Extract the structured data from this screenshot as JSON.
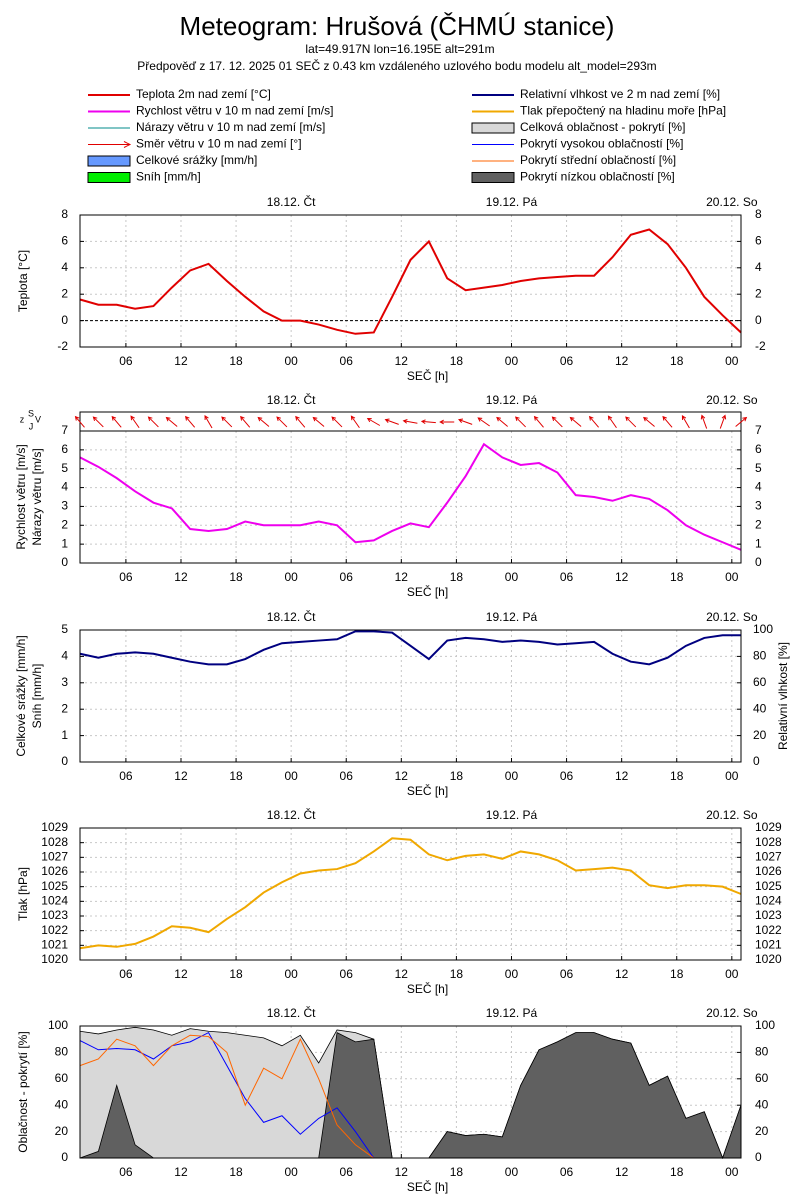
{
  "header": {
    "title": "Meteogram: Hrušová (ČHMÚ stanice)",
    "location": "lat=49.917N lon=16.195E alt=291m",
    "forecast": "Předpověď z 17. 12. 2025 01 SEČ z 0.43 km vzdáleného uzlového bodu modelu alt_model=293m"
  },
  "legend": {
    "left": [
      {
        "name": "Teplota 2m nad zemí [°C]",
        "color": "#e00000",
        "style": "line"
      },
      {
        "name": "Rychlost větru v 10 m nad zemí [m/s]",
        "color": "#ee00ee",
        "style": "line"
      },
      {
        "name": "Nárazy větru v 10 m nad zemí [m/s]",
        "color": "#008b8b",
        "style": "thin"
      },
      {
        "name": "Směr větru v 10 m nad zemí [°]",
        "color": "#e00000",
        "style": "arrow"
      },
      {
        "name": "Celkové srážky [mm/h]",
        "color": "#6699ff",
        "style": "box"
      },
      {
        "name": "Sníh [mm/h]",
        "color": "#00ee00",
        "style": "box"
      }
    ],
    "right": [
      {
        "name": "Relativní vlhkost ve 2 m nad zemí [%]",
        "color": "#000080",
        "style": "line"
      },
      {
        "name": "Tlak přepočtený na hladinu moře [hPa]",
        "color": "#f0a800",
        "style": "line"
      },
      {
        "name": "Celková oblačnost - pokrytí [%]",
        "color": "#d8d8d8",
        "style": "box"
      },
      {
        "name": "Pokrytí vysokou oblačností [%]",
        "color": "#0000ff",
        "style": "thin"
      },
      {
        "name": "Pokrytí střední oblačností [%]",
        "color": "#ff6600",
        "style": "thin"
      },
      {
        "name": "Pokrytí nízkou oblačností [%]",
        "color": "#606060",
        "style": "box"
      }
    ]
  },
  "time": {
    "xlabel": "SEČ [h]",
    "xlim": [
      1,
      73
    ],
    "x": [
      1,
      3,
      5,
      7,
      9,
      11,
      13,
      15,
      17,
      19,
      21,
      23,
      25,
      27,
      29,
      31,
      33,
      35,
      37,
      39,
      41,
      43,
      45,
      47,
      49,
      51,
      53,
      55,
      57,
      59,
      61,
      63,
      65,
      67,
      69,
      71,
      73
    ],
    "xticks": [
      {
        "value": 6,
        "label": "06"
      },
      {
        "value": 12,
        "label": "12"
      },
      {
        "value": 18,
        "label": "18"
      },
      {
        "value": 24,
        "label": "00"
      },
      {
        "value": 30,
        "label": "06"
      },
      {
        "value": 36,
        "label": "12"
      },
      {
        "value": 42,
        "label": "18"
      },
      {
        "value": 48,
        "label": "00"
      },
      {
        "value": 54,
        "label": "06"
      },
      {
        "value": 60,
        "label": "12"
      },
      {
        "value": 66,
        "label": "18"
      },
      {
        "value": 72,
        "label": "00"
      }
    ],
    "days": [
      {
        "value": 24,
        "label": "18.12. Čt"
      },
      {
        "value": 48,
        "label": "19.12. Pá"
      },
      {
        "value": 72,
        "label": "20.12. So"
      }
    ]
  },
  "chart_data": [
    {
      "type": "line",
      "ylabel": [
        "Teplota [°C]"
      ],
      "ylim": [
        -2,
        8
      ],
      "yticks": [
        -2,
        0,
        2,
        4,
        6,
        8
      ],
      "right_ticks": true,
      "zero_line": true,
      "grid": true,
      "series": [
        {
          "kind": "line",
          "color": "#e00000",
          "width": 2,
          "values": [
            1.6,
            1.2,
            1.2,
            0.9,
            1.1,
            2.5,
            3.8,
            4.3,
            3.0,
            1.8,
            0.7,
            0,
            0,
            -0.3,
            -0.7,
            -1.0,
            -0.9,
            1.8,
            4.6,
            6.0,
            3.2,
            2.3,
            2.5,
            2.7,
            3.0,
            3.2,
            3.3,
            3.4,
            3.4,
            4.8,
            6.5,
            6.9,
            5.8,
            4.0,
            1.8,
            0.4,
            -0.9
          ]
        }
      ]
    },
    {
      "type": "line",
      "ylabel": [
        "Rychlost větru [m/s]",
        "Nárazy větru [m/s]"
      ],
      "ylim": [
        0,
        7
      ],
      "yticks": [
        0,
        1,
        2,
        3,
        4,
        5,
        6,
        7
      ],
      "right_ticks": true,
      "grid": true,
      "direction_key": [
        "z",
        "S",
        "J",
        "V"
      ],
      "series": [
        {
          "kind": "line",
          "color": "#ee00ee",
          "width": 2,
          "values": [
            5.6,
            5.1,
            4.5,
            3.8,
            3.2,
            2.9,
            1.8,
            1.7,
            1.8,
            2.2,
            2.0,
            2.0,
            2.0,
            2.2,
            2.0,
            1.1,
            1.2,
            1.7,
            2.1,
            1.9,
            3.2,
            4.6,
            6.3,
            5.6,
            5.2,
            5.3,
            4.8,
            3.6,
            3.5,
            3.3,
            3.6,
            3.4,
            2.8,
            2.0,
            1.5,
            1.1,
            0.7
          ]
        },
        {
          "kind": "arrow",
          "color": "#e00000",
          "values": [
            140,
            135,
            140,
            145,
            135,
            130,
            140,
            150,
            135,
            140,
            130,
            135,
            140,
            130,
            135,
            145,
            120,
            110,
            100,
            95,
            90,
            110,
            125,
            130,
            135,
            140,
            135,
            130,
            140,
            145,
            135,
            130,
            140,
            150,
            160,
            200,
            230
          ]
        }
      ]
    },
    {
      "type": "line",
      "ylabel": [
        "Celkové srážky [mm/h]",
        "Sníh [mm/h]"
      ],
      "y2label": "Relativní vlhkost [%]",
      "ylim": [
        0,
        5
      ],
      "yticks": [
        0,
        1,
        2,
        3,
        4,
        5
      ],
      "y2lim": [
        0,
        100
      ],
      "y2ticks": [
        0,
        20,
        40,
        60,
        80,
        100
      ],
      "grid": true,
      "series": [
        {
          "kind": "bar",
          "color": "#6699ff",
          "values": [
            0,
            0,
            0,
            0,
            0,
            0,
            0,
            0,
            0,
            0,
            0,
            0,
            0,
            0,
            0,
            0,
            0,
            0,
            0,
            0,
            0,
            0,
            0,
            0,
            0,
            0,
            0,
            0,
            0,
            0,
            0,
            0,
            0,
            0,
            0,
            0,
            0
          ]
        },
        {
          "kind": "bar",
          "color": "#00ee00",
          "values": [
            0,
            0,
            0,
            0,
            0,
            0,
            0,
            0,
            0,
            0,
            0,
            0,
            0,
            0,
            0,
            0,
            0,
            0,
            0,
            0,
            0,
            0,
            0,
            0,
            0,
            0,
            0,
            0,
            0,
            0,
            0,
            0,
            0,
            0,
            0,
            0,
            0
          ]
        },
        {
          "kind": "line",
          "axis": "y2",
          "color": "#000080",
          "width": 2,
          "values": [
            82,
            79,
            82,
            83,
            82,
            79,
            76,
            74,
            74,
            78,
            85,
            90,
            91,
            92,
            93,
            99,
            99,
            98,
            88,
            78,
            92,
            94,
            93,
            91,
            92,
            91,
            89,
            90,
            91,
            82,
            76,
            74,
            79,
            88,
            94,
            96,
            96
          ]
        }
      ]
    },
    {
      "type": "line",
      "ylabel": [
        "Tlak [hPa]"
      ],
      "ylim": [
        1020,
        1029
      ],
      "yticks": [
        1020,
        1021,
        1022,
        1023,
        1024,
        1025,
        1026,
        1027,
        1028,
        1029
      ],
      "right_ticks": true,
      "grid": true,
      "series": [
        {
          "kind": "line",
          "color": "#f0a800",
          "width": 2,
          "values": [
            1020.8,
            1021.0,
            1020.9,
            1021.1,
            1021.6,
            1022.3,
            1022.2,
            1021.9,
            1022.8,
            1023.6,
            1024.6,
            1025.3,
            1025.9,
            1026.1,
            1026.2,
            1026.6,
            1027.4,
            1028.3,
            1028.2,
            1027.2,
            1026.8,
            1027.1,
            1027.2,
            1026.9,
            1027.4,
            1027.2,
            1026.8,
            1026.1,
            1026.2,
            1026.3,
            1026.1,
            1025.1,
            1024.9,
            1025.1,
            1025.1,
            1025.0,
            1024.5
          ]
        }
      ]
    },
    {
      "type": "line",
      "ylabel": [
        "Oblačnost - pokrytí [%]"
      ],
      "ylim": [
        0,
        100
      ],
      "yticks": [
        0,
        20,
        40,
        60,
        80,
        100
      ],
      "right_ticks": true,
      "grid": true,
      "series": [
        {
          "kind": "area",
          "color": "#d8d8d8",
          "edge": "#000000",
          "values": [
            96,
            94,
            97,
            99,
            97,
            93,
            98,
            96,
            95,
            93,
            91,
            85,
            93,
            72,
            97,
            95,
            90,
            0,
            0,
            0,
            20,
            17,
            18,
            16,
            55,
            82,
            88,
            95,
            95,
            90,
            87,
            55,
            62,
            30,
            35,
            0,
            40
          ]
        },
        {
          "kind": "area",
          "color": "#606060",
          "edge": "#000000",
          "values": [
            0,
            5,
            55,
            10,
            0,
            0,
            0,
            0,
            0,
            0,
            0,
            0,
            0,
            0,
            95,
            88,
            90,
            0,
            0,
            0,
            20,
            17,
            18,
            16,
            55,
            82,
            88,
            95,
            95,
            90,
            87,
            55,
            62,
            30,
            35,
            0,
            40
          ]
        },
        {
          "kind": "line",
          "color": "#0000ff",
          "width": 1,
          "values": [
            89,
            82,
            83,
            82,
            75,
            85,
            88,
            95,
            70,
            45,
            27,
            32,
            18,
            30,
            38,
            20,
            0,
            0,
            0,
            0,
            0,
            0,
            0,
            0,
            0,
            0,
            0,
            0,
            0,
            0,
            0,
            0,
            0,
            0,
            0,
            0,
            0
          ]
        },
        {
          "kind": "line",
          "color": "#ff6600",
          "width": 1,
          "values": [
            70,
            75,
            90,
            85,
            70,
            85,
            93,
            92,
            80,
            40,
            68,
            60,
            90,
            60,
            25,
            10,
            0,
            0,
            0,
            0,
            0,
            0,
            0,
            0,
            0,
            0,
            0,
            0,
            0,
            0,
            0,
            0,
            0,
            0,
            0,
            0,
            0
          ]
        }
      ]
    }
  ]
}
